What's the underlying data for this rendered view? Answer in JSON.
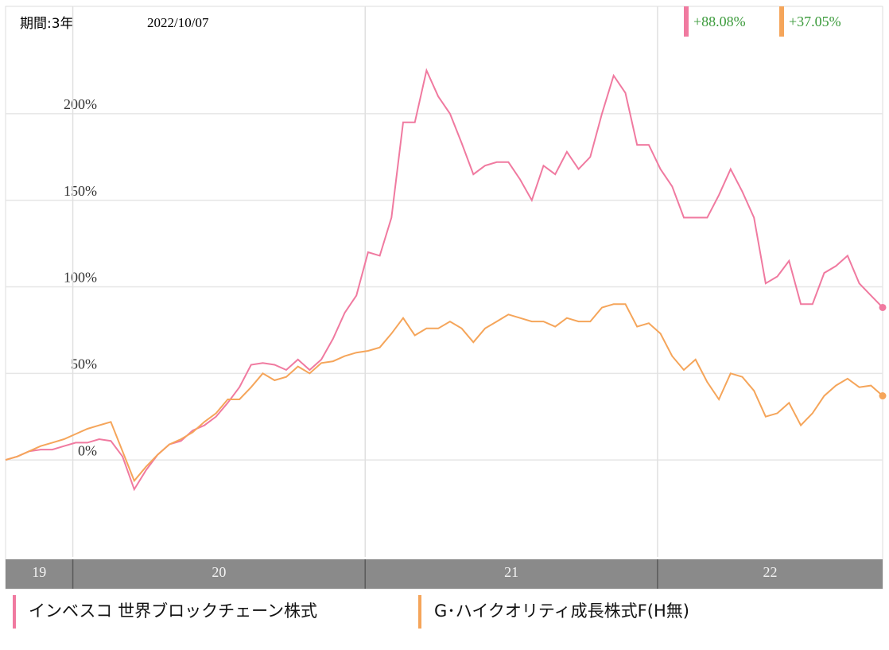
{
  "chart_data": {
    "type": "line",
    "period_label": "期間:3年",
    "date": "2022/10/07",
    "x": [
      2019.77,
      2019.81,
      2019.85,
      2019.89,
      2019.93,
      2019.97,
      2020.01,
      2020.05,
      2020.09,
      2020.13,
      2020.17,
      2020.21,
      2020.25,
      2020.29,
      2020.33,
      2020.37,
      2020.41,
      2020.45,
      2020.49,
      2020.53,
      2020.57,
      2020.61,
      2020.65,
      2020.69,
      2020.73,
      2020.77,
      2020.81,
      2020.85,
      2020.89,
      2020.93,
      2020.97,
      2021.01,
      2021.05,
      2021.09,
      2021.13,
      2021.17,
      2021.21,
      2021.25,
      2021.29,
      2021.33,
      2021.37,
      2021.41,
      2021.45,
      2021.49,
      2021.53,
      2021.57,
      2021.61,
      2021.65,
      2021.69,
      2021.73,
      2021.77,
      2021.81,
      2021.85,
      2021.89,
      2021.93,
      2021.97,
      2022.01,
      2022.05,
      2022.09,
      2022.13,
      2022.17,
      2022.21,
      2022.25,
      2022.29,
      2022.33,
      2022.37,
      2022.41,
      2022.45,
      2022.49,
      2022.53,
      2022.57,
      2022.61,
      2022.65,
      2022.69,
      2022.73,
      2022.77
    ],
    "xlim": [
      2019.77,
      2022.77
    ],
    "xticks": [
      {
        "value": 2019,
        "label": "19"
      },
      {
        "value": 2020,
        "label": "20"
      },
      {
        "value": 2021,
        "label": "21"
      },
      {
        "value": 2022,
        "label": "22"
      }
    ],
    "ylim": [
      -56,
      262
    ],
    "yticks": [
      {
        "value": 0,
        "label": "0%"
      },
      {
        "value": 50,
        "label": "50%"
      },
      {
        "value": 100,
        "label": "100%"
      },
      {
        "value": 150,
        "label": "150%"
      },
      {
        "value": 200,
        "label": "200%"
      }
    ],
    "grid": true,
    "series": [
      {
        "name": "インベスコ 世界ブロックチェーン株式",
        "color": "#f07aa0",
        "summary_label": "+88.08%",
        "values": [
          0,
          2,
          5,
          6,
          6,
          8,
          10,
          10,
          12,
          11,
          2,
          -17,
          -6,
          3,
          9,
          11,
          17,
          20,
          25,
          33,
          42,
          55,
          56,
          55,
          52,
          58,
          52,
          58,
          70,
          85,
          95,
          120,
          118,
          140,
          195,
          195,
          225,
          210,
          200,
          183,
          165,
          170,
          172,
          172,
          162,
          150,
          170,
          165,
          178,
          168,
          175,
          200,
          222,
          212,
          182,
          182,
          168,
          158,
          140,
          140,
          140,
          153,
          168,
          155,
          140,
          102,
          106,
          115,
          90,
          90,
          108,
          112,
          118,
          102,
          95,
          88.08
        ]
      },
      {
        "name": "G･ハイクオリティ成長株式F(H無)",
        "color": "#f5a55a",
        "summary_label": "+37.05%",
        "values": [
          0,
          2,
          5,
          8,
          10,
          12,
          15,
          18,
          20,
          22,
          5,
          -12,
          -4,
          3,
          9,
          12,
          16,
          22,
          27,
          35,
          35,
          42,
          50,
          46,
          48,
          54,
          50,
          56,
          57,
          60,
          62,
          63,
          65,
          73,
          82,
          72,
          76,
          76,
          80,
          76,
          68,
          76,
          80,
          84,
          82,
          80,
          80,
          77,
          82,
          80,
          80,
          88,
          90,
          90,
          77,
          79,
          73,
          60,
          52,
          58,
          45,
          35,
          50,
          48,
          40,
          25,
          27,
          33,
          20,
          27,
          37,
          43,
          47,
          42,
          43,
          37.05
        ]
      }
    ]
  }
}
